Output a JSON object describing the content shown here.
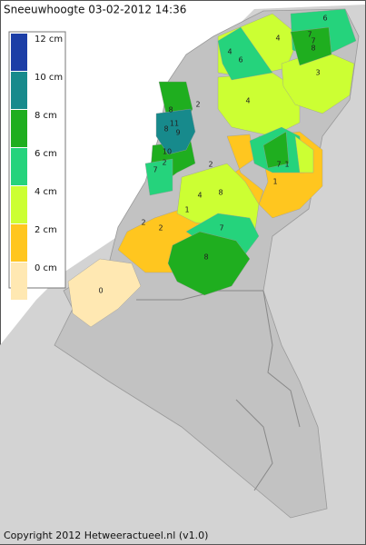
{
  "title": "Sneeuwhoogte 03-02-2012 14:36",
  "legend": [
    {
      "label": "12 cm",
      "color": "#1c3ea6"
    },
    {
      "label": "10 cm",
      "color": "#178a8c"
    },
    {
      "label": "8 cm",
      "color": "#1fae1f"
    },
    {
      "label": "6 cm",
      "color": "#25d37c"
    },
    {
      "label": "4 cm",
      "color": "#ccff33"
    },
    {
      "label": "2 cm",
      "color": "#ffc61f"
    },
    {
      "label": "0 cm",
      "color": "#ffe8b2"
    }
  ],
  "stations": [
    "6",
    "4",
    "6",
    "4",
    "7",
    "7",
    "8",
    "3",
    "2",
    "4",
    "8",
    "11",
    "8",
    "9",
    "10",
    "2",
    "2",
    "7",
    "7",
    "1",
    "1",
    "4",
    "8",
    "1",
    "2",
    "2",
    "7",
    "8",
    "0"
  ],
  "copyright": "Copyright 2012 Hetweeractueel.nl (v1.0)"
}
